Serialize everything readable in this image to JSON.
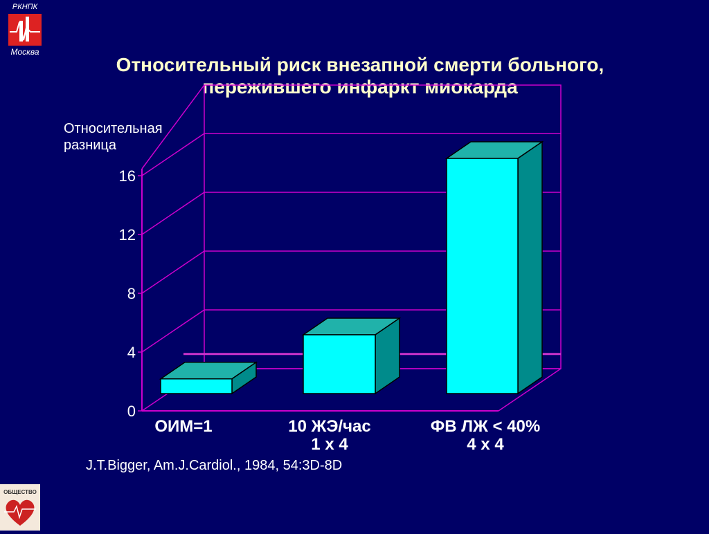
{
  "logo_top": {
    "line1": "РКНПК",
    "line2": "Москва"
  },
  "title": {
    "line1": "Относительный риск внезапной смерти больного,",
    "line2": "пережившего инфаркт миокарда"
  },
  "ylabel": {
    "line1": "Относительная",
    "line2": "разница"
  },
  "citation": "J.T.Bigger, Am.J.Cardiol., 1984, 54:3D-8D",
  "logo_bottom": {
    "text": "ОБЩЕСТВО"
  },
  "chart_data": {
    "type": "bar",
    "title": "Относительный риск внезапной смерти больного, пережившего инфаркт миокарда",
    "ylabel": "Относительная разница",
    "xlabel": "",
    "ylim": [
      0,
      16
    ],
    "yticks": [
      "0",
      "4",
      "8",
      "12",
      "16"
    ],
    "categories": [
      {
        "line1": "ОИМ=1",
        "line2": ""
      },
      {
        "line1": "10 ЖЭ/час",
        "line2": "1 х 4"
      },
      {
        "line1": "ФВ ЛЖ < 40%",
        "line2": "4 х 4"
      }
    ],
    "values": [
      1,
      4,
      16
    ],
    "reference_line": 1,
    "grid": true,
    "colors": {
      "bar_front": "#00ffff",
      "bar_side": "#008b8b",
      "bar_top": "#20b2aa",
      "axes": "#cc00cc",
      "reference": "#cc33cc",
      "background": "#000066"
    }
  }
}
